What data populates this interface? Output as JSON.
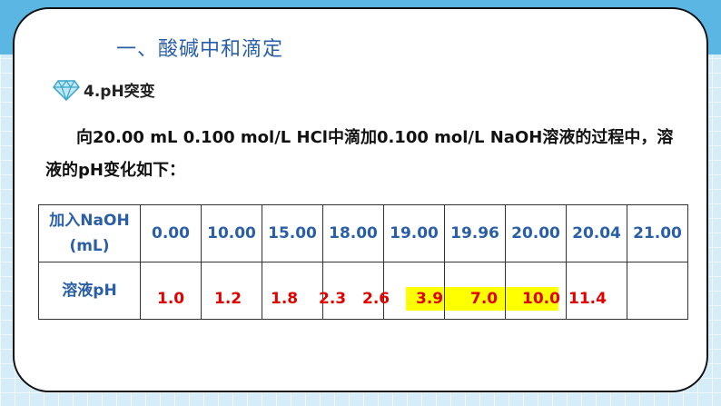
{
  "section_title": "一、酸碱中和滴定",
  "sub_heading": "4.pH突变",
  "paragraph": "向20.00 mL 0.100 mol/L HCl中滴加0.100 mol/L NaOH溶液的过程中，溶液的pH变化如下：",
  "table": {
    "header_label_line1": "加入NaOH",
    "header_label_line2": "(mL)",
    "row_label": "溶液pH",
    "volumes": [
      "0.00",
      "10.00",
      "15.00",
      "18.00",
      "19.00",
      "19.96",
      "20.00",
      "20.04",
      "21.00"
    ],
    "ph_values": [
      "1.0",
      "1.2",
      "1.8",
      "2.3",
      "2.6",
      "3.9",
      "7.0",
      "10.0",
      "11.4"
    ]
  },
  "colors": {
    "title_blue": "#2a5fa8",
    "value_red": "#e00000",
    "highlight_yellow": "#ffff00"
  }
}
